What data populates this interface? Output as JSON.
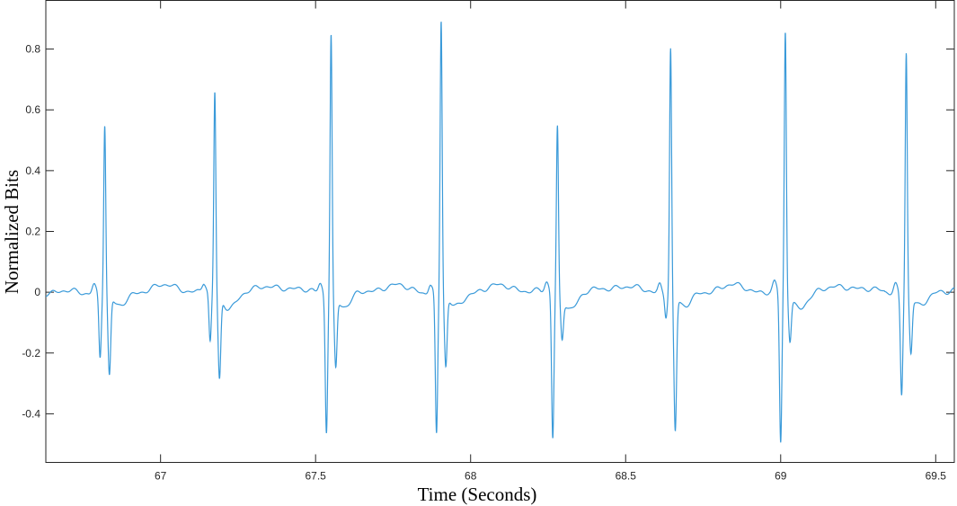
{
  "chart_data": {
    "type": "line",
    "title": "",
    "xlabel": "Time (Seconds)",
    "ylabel": "Normalized Bits",
    "xlim": [
      66.63,
      69.56
    ],
    "ylim": [
      -0.56,
      0.96
    ],
    "x_ticks": [
      67,
      67.5,
      68,
      68.5,
      69,
      69.5
    ],
    "x_tick_labels": [
      "67",
      "67.5",
      "68",
      "68.5",
      "69",
      "69.5"
    ],
    "y_ticks": [
      -0.4,
      -0.2,
      0,
      0.2,
      0.4,
      0.6,
      0.8
    ],
    "y_tick_labels": [
      "-0.4",
      "-0.2",
      "0",
      "0.2",
      "0.4",
      "0.6",
      "0.8"
    ],
    "grid": false,
    "line_color": "#3a9ad9",
    "beats": [
      {
        "t": 66.82,
        "peak": 0.56,
        "s_min": -0.26,
        "q_min": -0.21
      },
      {
        "t": 67.175,
        "peak": 0.66,
        "s_min": -0.27,
        "q_min": -0.17
      },
      {
        "t": 67.55,
        "peak": 0.86,
        "s_min": -0.23,
        "q_min": -0.45
      },
      {
        "t": 67.905,
        "peak": 0.9,
        "s_min": -0.23,
        "q_min": -0.47
      },
      {
        "t": 68.28,
        "peak": 0.55,
        "s_min": -0.13,
        "q_min": -0.48
      },
      {
        "t": 68.645,
        "peak": 0.81,
        "s_min": -0.44,
        "q_min": -0.07
      },
      {
        "t": 69.015,
        "peak": 0.86,
        "s_min": -0.14,
        "q_min": -0.5
      },
      {
        "t": 69.405,
        "peak": 0.8,
        "s_min": -0.18,
        "q_min": -0.33
      }
    ]
  }
}
